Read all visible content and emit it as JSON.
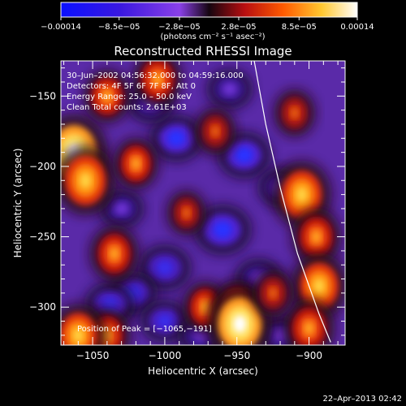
{
  "chart_data": {
    "type": "heatmap",
    "title": "Reconstructed RHESSI Image",
    "xlabel": "Heliocentric X (arcsec)",
    "ylabel": "Heliocentric Y (arcsec)",
    "xlim": [
      -1072,
      -875
    ],
    "ylim": [
      -327,
      -125
    ],
    "x_ticks": [
      -1050,
      -1000,
      -950,
      -900
    ],
    "x_tick_labels": [
      "−1050",
      "−1000",
      "−950",
      "−900"
    ],
    "y_ticks": [
      -150,
      -200,
      -250,
      -300
    ],
    "y_tick_labels": [
      "−150",
      "−200",
      "−250",
      "−300"
    ],
    "colorbar": {
      "range": [
        -0.00014,
        0.00014
      ],
      "tick_values": [
        -0.00014,
        -8.5e-05,
        -2.8e-05,
        2.8e-05,
        8.5e-05,
        0.00014
      ],
      "tick_labels": [
        "−0.00014",
        "−8.5e−05",
        "−2.8e−05",
        "2.8e−05",
        "8.5e−05",
        "0.00014"
      ],
      "unit_label": "(photons cm⁻² s⁻¹ asec⁻²)",
      "colors": [
        "#1010ff",
        "#5a1ac8",
        "#8e3eea",
        "#2a0828",
        "#d01010",
        "#ff6a00",
        "#ffd030",
        "#ffffff"
      ]
    },
    "annotations": [
      "30–Jun–2002 04:56:32.000 to 04:59:16.000",
      "Detectors: 4F 5F 6F 7F 8F, Att 0",
      "Energy Range: 25.0 – 50.0 keV",
      "Clean    Total counts: 2.61E+03"
    ],
    "peak_label": "Position of Peak = [−1065,−191]",
    "peak": [
      -1065,
      -191
    ],
    "limb_curve": [
      [
        -938,
        -125
      ],
      [
        -930,
        -170
      ],
      [
        -920,
        -215
      ],
      [
        -908,
        -262
      ],
      [
        -893,
        -305
      ],
      [
        -885,
        -325
      ]
    ],
    "hot_spots": [
      {
        "x": -1063,
        "y": -190,
        "v": 1.0
      },
      {
        "x": -1055,
        "y": -210,
        "v": 0.85
      },
      {
        "x": -1040,
        "y": -150,
        "v": 0.5
      },
      {
        "x": -1005,
        "y": -138,
        "v": 0.55
      },
      {
        "x": -1035,
        "y": -262,
        "v": 0.55
      },
      {
        "x": -1040,
        "y": -320,
        "v": 0.5
      },
      {
        "x": -1060,
        "y": -320,
        "v": 0.7
      },
      {
        "x": -1020,
        "y": -198,
        "v": 0.45
      },
      {
        "x": -972,
        "y": -300,
        "v": 0.45
      },
      {
        "x": -965,
        "y": -175,
        "v": 0.35
      },
      {
        "x": -950,
        "y": -300,
        "v": 0.5
      },
      {
        "x": -948,
        "y": -312,
        "v": 0.95
      },
      {
        "x": -905,
        "y": -220,
        "v": 0.8
      },
      {
        "x": -895,
        "y": -250,
        "v": 0.55
      },
      {
        "x": -893,
        "y": -285,
        "v": 0.75
      },
      {
        "x": -900,
        "y": -315,
        "v": 0.6
      },
      {
        "x": -910,
        "y": -162,
        "v": 0.35
      },
      {
        "x": -925,
        "y": -290,
        "v": 0.35
      },
      {
        "x": -985,
        "y": -233,
        "v": 0.3
      }
    ],
    "cold_spots": [
      {
        "x": -960,
        "y": -245,
        "v": -0.9
      },
      {
        "x": -992,
        "y": -180,
        "v": -0.75
      },
      {
        "x": -945,
        "y": -192,
        "v": -0.75
      },
      {
        "x": -1000,
        "y": -272,
        "v": -0.7
      },
      {
        "x": -1022,
        "y": -290,
        "v": -0.55
      },
      {
        "x": -1038,
        "y": -298,
        "v": -0.6
      },
      {
        "x": -1000,
        "y": -310,
        "v": -0.55
      },
      {
        "x": -935,
        "y": -280,
        "v": -0.5
      },
      {
        "x": -955,
        "y": -145,
        "v": -0.45
      },
      {
        "x": -1030,
        "y": -230,
        "v": -0.4
      },
      {
        "x": -1010,
        "y": -155,
        "v": -0.45
      },
      {
        "x": -920,
        "y": -215,
        "v": -0.4
      },
      {
        "x": -920,
        "y": -320,
        "v": -0.4
      },
      {
        "x": -975,
        "y": -320,
        "v": -0.45
      }
    ]
  },
  "footer": {
    "timestamp": "22–Apr–2013 02:42"
  }
}
